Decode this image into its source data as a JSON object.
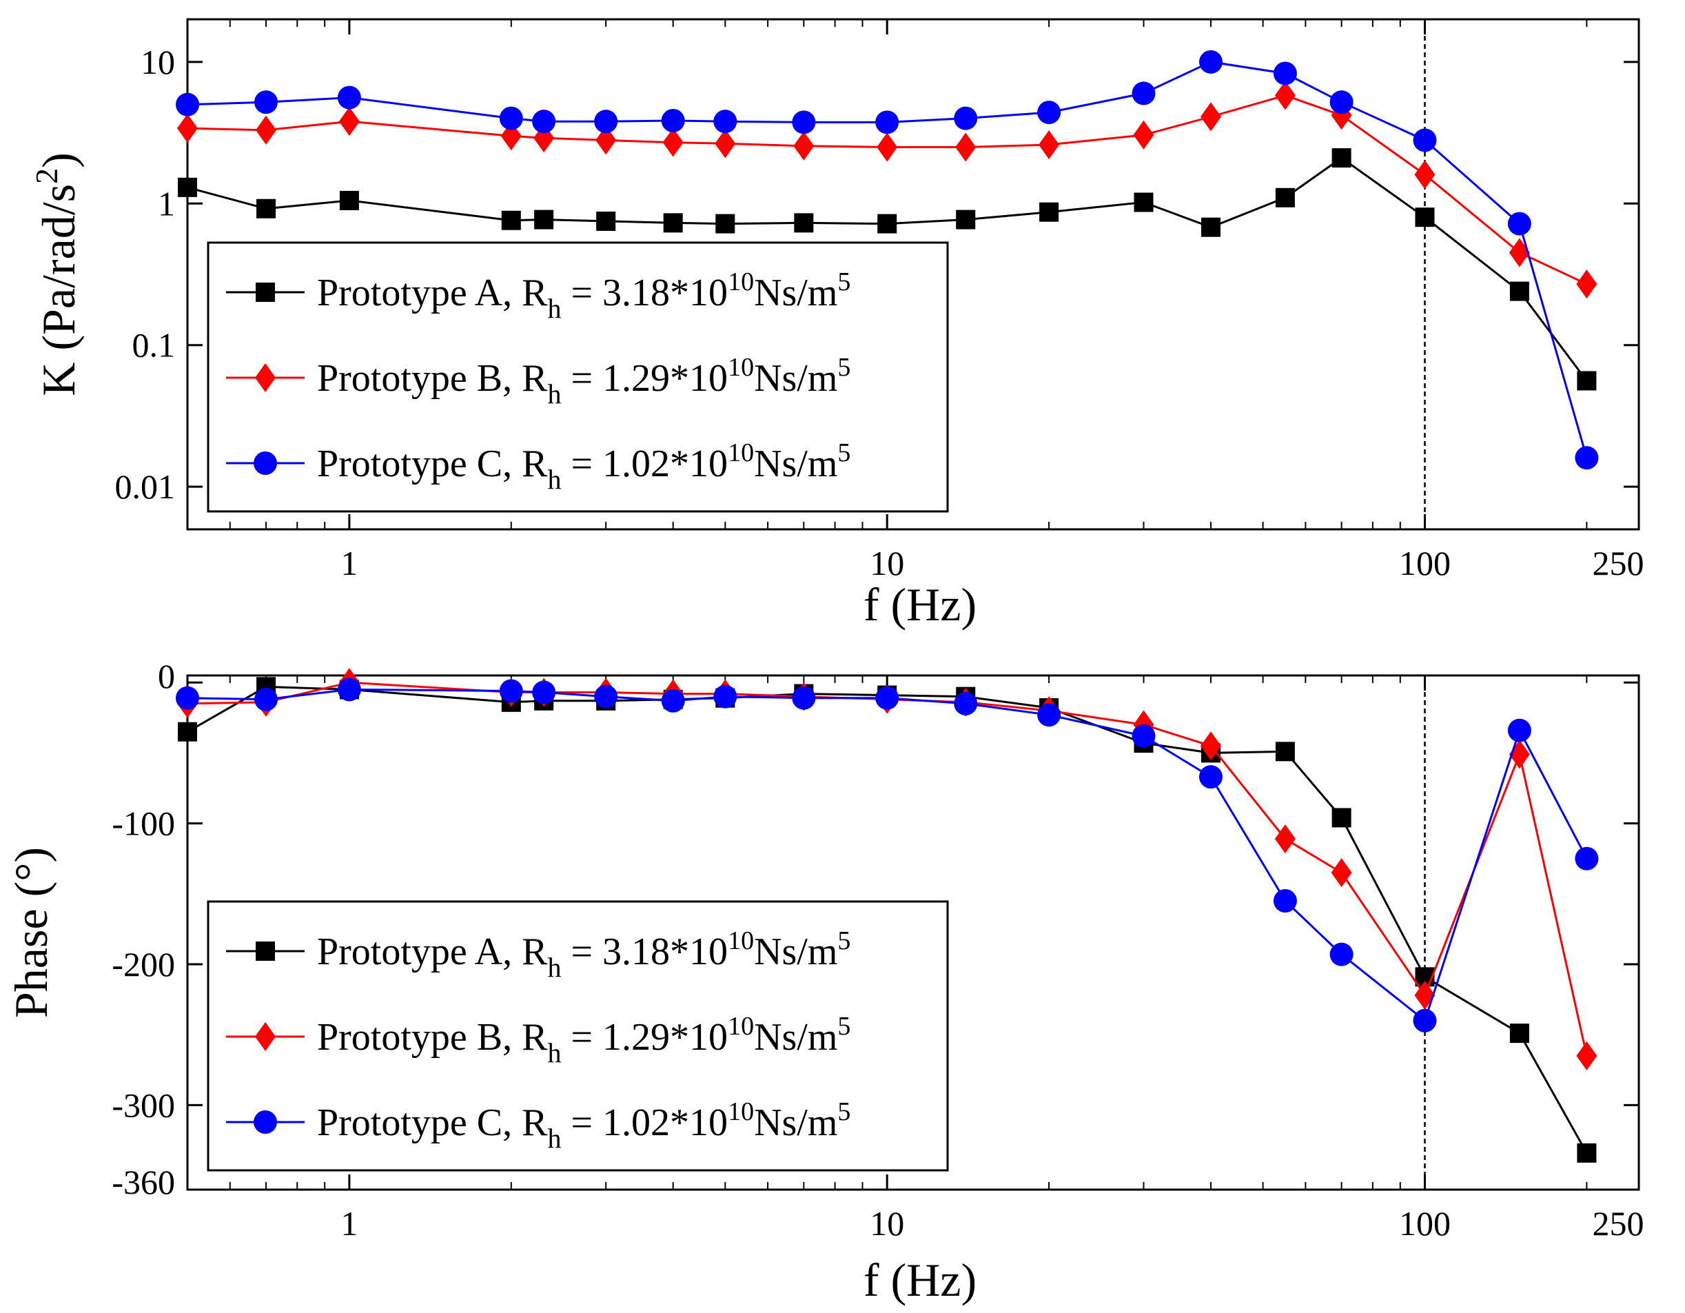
{
  "figure": {
    "type": "bode-plot"
  },
  "chart_data": [
    {
      "type": "line",
      "id": "magnitude",
      "xscale": "log",
      "yscale": "log",
      "xlim": [
        0.5,
        250
      ],
      "ylim": [
        0.005,
        20
      ],
      "xlabel": "f (Hz)",
      "ylabel": {
        "main": "K (Pa/rad/s",
        "sup": "2",
        "tail": ")"
      },
      "xticks": [
        1,
        10,
        100,
        250
      ],
      "xtick_labels": [
        "1",
        "10",
        "100",
        "250"
      ],
      "yticks": [
        0.01,
        0.1,
        1,
        10
      ],
      "ytick_labels": [
        "0.01",
        "0.1",
        "1",
        "10"
      ],
      "reference_line_x": 100,
      "legend_position": "bottom-left",
      "x": [
        0.5,
        0.7,
        1,
        2,
        2.3,
        3,
        4,
        5,
        7,
        10,
        14,
        20,
        30,
        40,
        55,
        70,
        100,
        150,
        200
      ],
      "series": [
        {
          "name": "Prototype A",
          "marker": "square",
          "color": "#000000",
          "values": [
            1.3,
            0.92,
            1.05,
            0.76,
            0.77,
            0.75,
            0.73,
            0.72,
            0.73,
            0.72,
            0.77,
            0.87,
            1.02,
            0.68,
            1.1,
            2.1,
            0.8,
            0.24,
            0.056
          ]
        },
        {
          "name": "Prototype B",
          "marker": "diamond",
          "color": "#ff0000",
          "values": [
            3.4,
            3.3,
            3.8,
            3.0,
            2.9,
            2.8,
            2.7,
            2.65,
            2.55,
            2.5,
            2.5,
            2.6,
            3.05,
            4.1,
            5.8,
            4.2,
            1.6,
            0.45,
            0.27
          ]
        },
        {
          "name": "Prototype C",
          "marker": "circle",
          "color": "#0000ff",
          "values": [
            5.0,
            5.2,
            5.6,
            4.0,
            3.8,
            3.8,
            3.85,
            3.8,
            3.75,
            3.75,
            4.0,
            4.4,
            6.0,
            10.0,
            8.3,
            5.2,
            2.8,
            0.72,
            0.016
          ]
        }
      ]
    },
    {
      "type": "line",
      "id": "phase",
      "xscale": "log",
      "yscale": "linear",
      "xlim": [
        0.5,
        250
      ],
      "ylim": [
        -360,
        5
      ],
      "xlabel": "f (Hz)",
      "ylabel": {
        "main": "Phase (°)"
      },
      "xticks": [
        1,
        10,
        100,
        250
      ],
      "xtick_labels": [
        "1",
        "10",
        "100",
        "250"
      ],
      "yticks": [
        0,
        -100,
        -200,
        -300,
        -360
      ],
      "ytick_labels": [
        "0",
        "-100",
        "-200",
        "-300",
        "-360"
      ],
      "reference_line_x": 100,
      "legend_position": "bottom-left",
      "x": [
        0.5,
        0.7,
        1,
        2,
        2.3,
        3,
        4,
        5,
        7,
        10,
        14,
        20,
        30,
        40,
        55,
        70,
        100,
        150,
        200
      ],
      "series": [
        {
          "name": "Prototype A",
          "marker": "square",
          "color": "#000000",
          "values": [
            -35,
            -3,
            -5,
            -14,
            -13,
            -13,
            -12,
            -11,
            -8,
            -9,
            -10,
            -18,
            -43,
            -50,
            -49,
            -96,
            -209,
            -249,
            -334
          ]
        },
        {
          "name": "Prototype B",
          "marker": "diamond",
          "color": "#ff0000",
          "values": [
            -15,
            -14,
            0,
            -7,
            -7,
            -7,
            -8,
            -8,
            -10,
            -12,
            -14,
            -20,
            -30,
            -45,
            -111,
            -135,
            -222,
            -51,
            -265
          ]
        },
        {
          "name": "Prototype C",
          "marker": "circle",
          "color": "#0000ff",
          "values": [
            -11,
            -12,
            -5,
            -6,
            -7,
            -10,
            -13,
            -10,
            -11,
            -11,
            -15,
            -23,
            -38,
            -67,
            -155,
            -193,
            -240,
            -34,
            -125
          ]
        }
      ]
    }
  ],
  "legend": [
    {
      "name": "Prototype A",
      "text_main": "Prototype A, R",
      "text_sub": "h",
      "text_mid": " = 3.18*10",
      "text_sup": "10",
      "text_unit": "Ns/m",
      "text_sup2": "5"
    },
    {
      "name": "Prototype B",
      "text_main": "Prototype B, R",
      "text_sub": "h",
      "text_mid": " = 1.29*10",
      "text_sup": "10",
      "text_unit": "Ns/m",
      "text_sup2": "5"
    },
    {
      "name": "Prototype C",
      "text_main": "Prototype C, R",
      "text_sub": "h",
      "text_mid": " = 1.02*10",
      "text_sup": "10",
      "text_unit": "Ns/m",
      "text_sup2": "5"
    }
  ]
}
